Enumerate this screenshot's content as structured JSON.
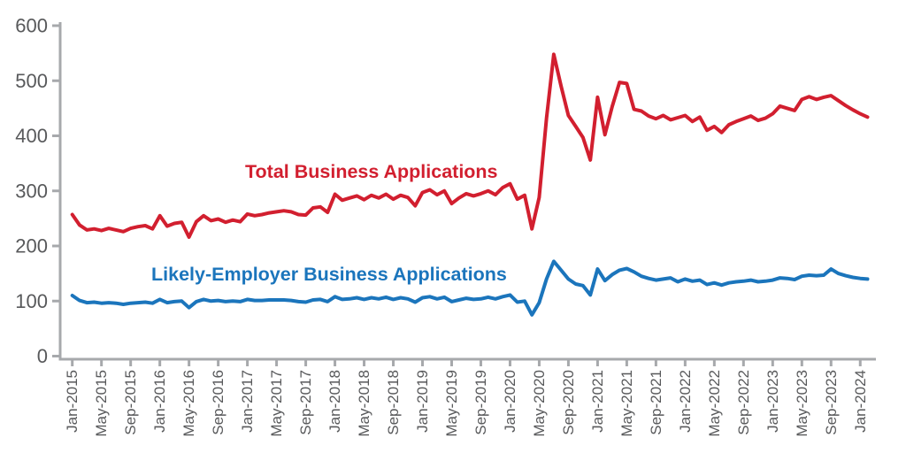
{
  "chart_data": {
    "type": "line",
    "title": "",
    "xlabel": "",
    "ylabel": "",
    "ylim": [
      0,
      600
    ],
    "y_ticks": [
      0,
      100,
      200,
      300,
      400,
      500,
      600
    ],
    "x_tick_labels": [
      "Jan-2015",
      "May-2015",
      "Sep-2015",
      "Jan-2016",
      "May-2016",
      "Sep-2016",
      "Jan-2017",
      "May-2017",
      "Sep-2017",
      "Jan-2018",
      "May-2018",
      "Sep-2018",
      "Jan-2019",
      "May-2019",
      "Sep-2019",
      "Jan-2020",
      "May-2020",
      "Sep-2020",
      "Jan-2021",
      "May-2021",
      "Sep-2021",
      "Jan-2022",
      "May-2022",
      "Sep-2022",
      "Jan-2023",
      "May-2023",
      "Sep-2023",
      "Jan-2024"
    ],
    "x_tick_interval_months": 4,
    "x_start": "Jan-2015",
    "x_end": "Feb-2024",
    "grid": false,
    "legend_position": "inline-annotations",
    "axis_color": "#a7a9ac",
    "tick_label_color": "#58595b",
    "series": [
      {
        "name": "total-business-applications",
        "label": "Total Business Applications",
        "color": "#d21f2f",
        "values": [
          257,
          238,
          229,
          231,
          228,
          232,
          229,
          226,
          232,
          235,
          237,
          231,
          255,
          236,
          241,
          243,
          216,
          244,
          255,
          246,
          249,
          243,
          247,
          244,
          258,
          255,
          257,
          260,
          262,
          264,
          262,
          257,
          256,
          269,
          271,
          261,
          294,
          283,
          287,
          291,
          284,
          292,
          287,
          294,
          285,
          292,
          288,
          273,
          297,
          302,
          293,
          300,
          277,
          287,
          295,
          291,
          295,
          300,
          293,
          306,
          313,
          285,
          292,
          231,
          288,
          432,
          548,
          490,
          437,
          417,
          397,
          356,
          470,
          402,
          453,
          497,
          495,
          448,
          445,
          436,
          431,
          437,
          429,
          433,
          437,
          426,
          434,
          410,
          417,
          406,
          420,
          426,
          431,
          436,
          428,
          432,
          440,
          454,
          450,
          446,
          466,
          471,
          466,
          470,
          473,
          464,
          455,
          447,
          440,
          434
        ]
      },
      {
        "name": "likely-employer-business-applications",
        "label": "Likely-Employer Business Applications",
        "color": "#1b75bc",
        "values": [
          110,
          101,
          97,
          98,
          96,
          97,
          96,
          94,
          96,
          97,
          98,
          96,
          103,
          97,
          99,
          100,
          88,
          99,
          103,
          100,
          101,
          99,
          100,
          99,
          103,
          101,
          101,
          102,
          102,
          102,
          101,
          99,
          98,
          102,
          103,
          99,
          108,
          103,
          104,
          106,
          103,
          106,
          104,
          107,
          103,
          106,
          104,
          98,
          106,
          108,
          104,
          107,
          99,
          102,
          105,
          103,
          104,
          107,
          104,
          108,
          111,
          98,
          100,
          75,
          97,
          140,
          172,
          156,
          140,
          131,
          128,
          111,
          158,
          137,
          148,
          156,
          159,
          153,
          145,
          141,
          138,
          140,
          142,
          135,
          140,
          136,
          138,
          130,
          133,
          129,
          133,
          135,
          136,
          138,
          135,
          136,
          138,
          142,
          141,
          139,
          145,
          147,
          146,
          147,
          158,
          150,
          146,
          143,
          141,
          140
        ]
      }
    ]
  }
}
